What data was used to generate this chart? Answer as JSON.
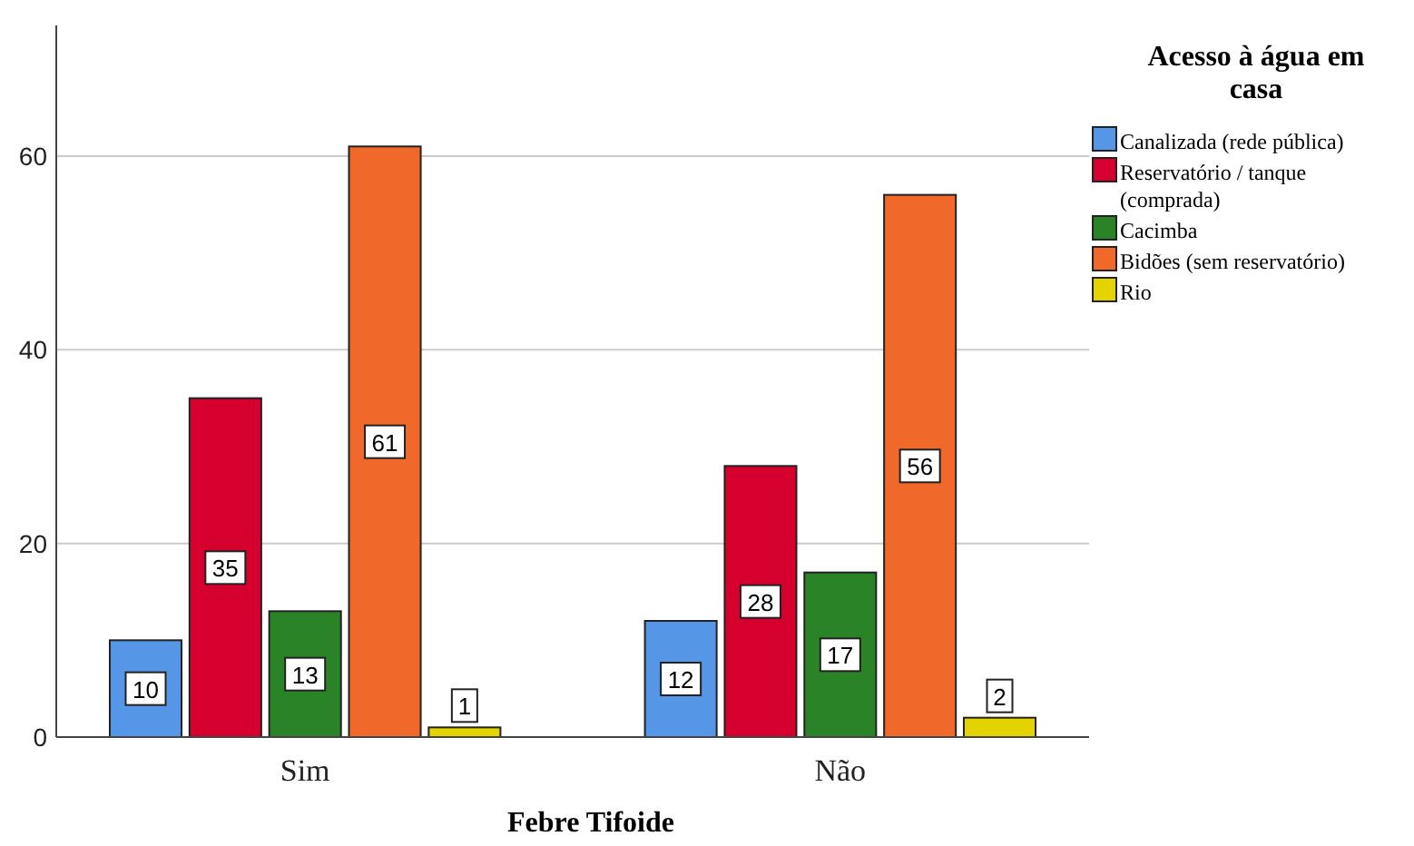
{
  "chart_data": {
    "type": "bar",
    "xlabel": "Febre Tifoide",
    "legend_title": "Acesso à água em casa",
    "categories": [
      "Sim",
      "Não"
    ],
    "series": [
      {
        "name": "Canalizada (rede pública)",
        "color": "#5596e6",
        "values": [
          10,
          12
        ]
      },
      {
        "name": "Reservatório / tanque (comprada)",
        "color": "#d5002d",
        "values": [
          35,
          28
        ]
      },
      {
        "name": "Cacimba",
        "color": "#2a8427",
        "values": [
          13,
          17
        ]
      },
      {
        "name": "Bidões (sem reservatório)",
        "color": "#f0692a",
        "values": [
          61,
          56
        ]
      },
      {
        "name": "Rio",
        "color": "#e3d400",
        "values": [
          1,
          2
        ]
      }
    ],
    "ylim": [
      0,
      73.5
    ],
    "yticks": [
      0,
      20,
      40,
      60
    ],
    "grid": "y",
    "legend": "top right",
    "data_labels": true
  }
}
